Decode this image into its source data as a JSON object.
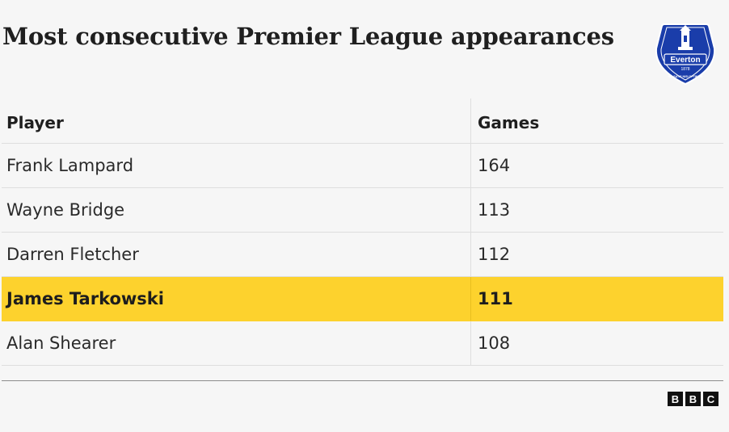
{
  "title": "Most consecutive Premier League appearances",
  "crest": {
    "name": "Everton",
    "year": "1878",
    "motto": "NIL SATIS NISI OPTIMUM",
    "color": "#1a3daa"
  },
  "table": {
    "headers": [
      "Player",
      "Games"
    ],
    "rows": [
      {
        "player": "Frank Lampard",
        "games": "164"
      },
      {
        "player": "Wayne Bridge",
        "games": "113"
      },
      {
        "player": "Darren Fletcher",
        "games": "112"
      },
      {
        "player": "James Tarkowski",
        "games": "111"
      },
      {
        "player": "Alan Shearer",
        "games": "108"
      }
    ],
    "highlight_color": "#fdd22d"
  },
  "chart_data": {
    "type": "table",
    "title": "Most consecutive Premier League appearances",
    "columns": [
      "Player",
      "Games"
    ],
    "rows": [
      [
        "Frank Lampard",
        164
      ],
      [
        "Wayne Bridge",
        113
      ],
      [
        "Darren Fletcher",
        112
      ],
      [
        "James Tarkowski",
        111
      ],
      [
        "Alan Shearer",
        108
      ]
    ],
    "highlighted_row": "James Tarkowski"
  },
  "source_logo": {
    "letters": [
      "B",
      "B",
      "C"
    ]
  }
}
